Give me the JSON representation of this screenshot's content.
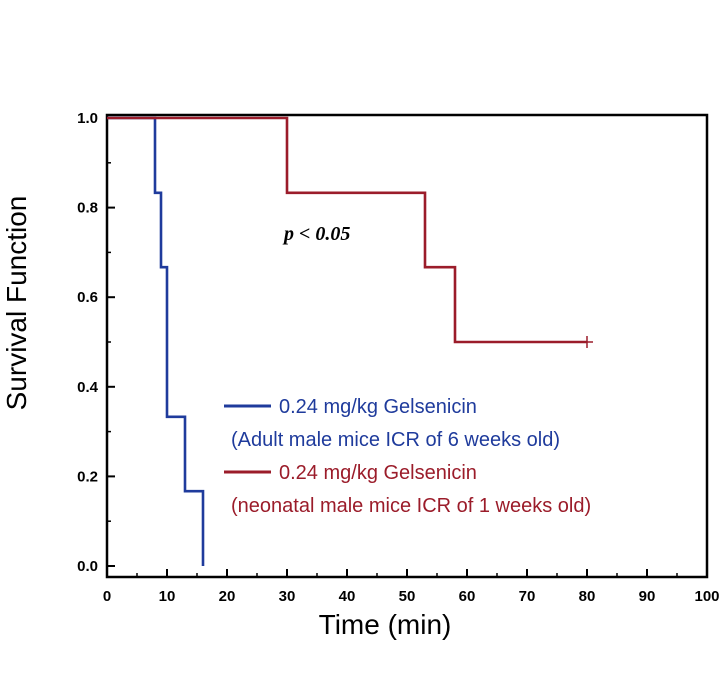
{
  "chart_data": {
    "type": "line",
    "subtype": "kaplan-meier-step",
    "title": "",
    "xlabel": "Time (min)",
    "ylabel": "Survival Function",
    "xlim": [
      0,
      100
    ],
    "ylim": [
      0,
      1
    ],
    "xticks": [
      0,
      10,
      20,
      30,
      40,
      50,
      60,
      70,
      80,
      90,
      100
    ],
    "yticks": [
      "0.0",
      "0.2",
      "0.4",
      "0.6",
      "0.8",
      "1.0"
    ],
    "annotation": "p < 0.05",
    "series": [
      {
        "name": "0.24 mg/kg Gelsenicin",
        "description": "(Adult male mice ICR of 6 weeks old)",
        "color": "#1f3b9c",
        "steps": [
          [
            0,
            1.0
          ],
          [
            8,
            1.0
          ],
          [
            8,
            0.833
          ],
          [
            9,
            0.833
          ],
          [
            9,
            0.667
          ],
          [
            10,
            0.667
          ],
          [
            10,
            0.333
          ],
          [
            13,
            0.333
          ],
          [
            13,
            0.167
          ],
          [
            16,
            0.167
          ],
          [
            16,
            0.0
          ]
        ],
        "censored": []
      },
      {
        "name": "0.24 mg/kg Gelsenicin",
        "description": "(neonatal male mice ICR of 1 weeks old)",
        "color": "#9b1c2a",
        "steps": [
          [
            0,
            1.0
          ],
          [
            30,
            1.0
          ],
          [
            30,
            0.833
          ],
          [
            53,
            0.833
          ],
          [
            53,
            0.667
          ],
          [
            58,
            0.667
          ],
          [
            58,
            0.5
          ],
          [
            80,
            0.5
          ]
        ],
        "censored": [
          [
            80,
            0.5
          ]
        ]
      }
    ]
  }
}
